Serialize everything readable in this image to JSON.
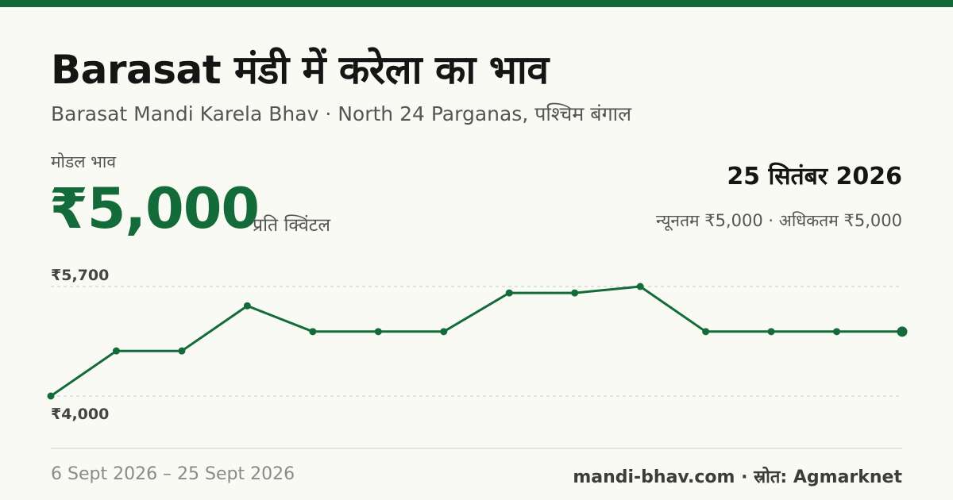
{
  "header": {
    "title": "Barasat मंडी में करेला का भाव",
    "subtitle": "Barasat Mandi Karela Bhav · North 24 Parganas, पश्चिम बंगाल"
  },
  "price": {
    "label": "मोडल भाव",
    "value": "₹5,000",
    "unit": "प्रति क्विंटल"
  },
  "latest": {
    "date": "25 सितंबर 2026",
    "range": "न्यूनतम ₹5,000 · अधिकतम ₹5,000"
  },
  "footer": {
    "period": "6 Sept 2026 – 25 Sept 2026",
    "source": "mandi-bhav.com · स्रोत: Agmarknet"
  },
  "colors": {
    "accent": "#146b3a",
    "grid": "#c8c8c8",
    "baseline": "#dcdcdc"
  },
  "chart_data": {
    "type": "line",
    "y_tick_labels": [
      "₹5,700",
      "₹4,000"
    ],
    "y_ticks": [
      5700,
      4000
    ],
    "ylim": [
      4000,
      5700
    ],
    "grid": "dashed horizontal at ticks",
    "series": [
      {
        "values": [
          4000,
          4700,
          4700,
          5400,
          5000,
          5000,
          5000,
          5600,
          5600,
          5700,
          5000,
          5000,
          5000,
          5000
        ]
      }
    ]
  }
}
